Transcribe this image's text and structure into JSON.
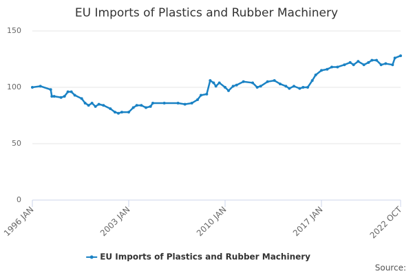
{
  "chart_data": {
    "type": "line",
    "title": "EU Imports of Plastics and Rubber Machinery",
    "source": "Source:",
    "x": [
      "1996-01",
      "1996-08",
      "1997-05",
      "1997-06",
      "1997-08",
      "1998-02",
      "1998-05",
      "1998-08",
      "1998-11",
      "1999-02",
      "1999-08",
      "1999-11",
      "2000-02",
      "2000-05",
      "2000-08",
      "2000-11",
      "2001-03",
      "2001-09",
      "2002-01",
      "2002-04",
      "2002-07",
      "2003-01",
      "2003-05",
      "2003-08",
      "2003-12",
      "2004-04",
      "2004-08",
      "2004-10",
      "2005-08",
      "2006-08",
      "2007-02",
      "2007-08",
      "2008-01",
      "2008-04",
      "2008-09",
      "2008-12",
      "2009-03",
      "2009-05",
      "2009-08",
      "2010-01",
      "2010-04",
      "2010-08",
      "2010-11",
      "2011-05",
      "2012-01",
      "2012-05",
      "2012-08",
      "2013-02",
      "2013-08",
      "2014-01",
      "2014-06",
      "2014-09",
      "2015-01",
      "2015-06",
      "2015-09",
      "2016-01",
      "2016-05",
      "2016-08",
      "2017-01",
      "2017-06",
      "2017-10",
      "2018-03",
      "2018-09",
      "2019-02",
      "2019-05",
      "2019-09",
      "2020-02",
      "2020-06",
      "2020-09",
      "2021-01",
      "2021-05",
      "2021-09",
      "2022-03",
      "2022-05",
      "2022-10"
    ],
    "series": [
      {
        "name": "EU Imports of Plastics and Rubber Machinery",
        "color": "#1a82c4",
        "values": [
          100,
          101,
          98,
          92,
          92,
          91,
          92,
          96,
          96,
          93,
          90,
          86,
          84,
          86,
          83,
          85,
          84,
          81,
          78,
          77,
          78,
          78,
          82,
          84,
          84,
          82,
          83,
          86,
          86,
          86,
          85,
          86,
          89,
          93,
          94,
          106,
          104,
          101,
          104,
          100,
          97,
          101,
          102,
          105,
          104,
          100,
          101,
          105,
          106,
          103,
          101,
          99,
          101,
          99,
          100,
          100,
          106,
          111,
          115,
          116,
          118,
          118,
          120,
          122,
          120,
          123,
          120,
          122,
          124,
          124,
          120,
          121,
          120,
          126,
          128
        ]
      }
    ],
    "xlim": [
      "1996-01",
      "2022-10"
    ],
    "xticks": [
      {
        "value": "1996-01",
        "label": "1996 JAN"
      },
      {
        "value": "2003-01",
        "label": "2003 JAN"
      },
      {
        "value": "2010-01",
        "label": "2010 JAN"
      },
      {
        "value": "2017-01",
        "label": "2017 JAN"
      },
      {
        "value": "2022-10",
        "label": "2022 OCT"
      }
    ],
    "ylim": [
      0,
      150
    ],
    "yticks": [
      0,
      50,
      100,
      150
    ],
    "grid": true
  }
}
